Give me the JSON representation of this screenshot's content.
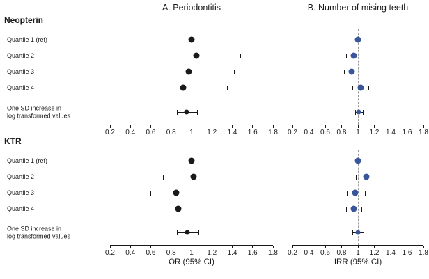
{
  "chart_data": {
    "type": "forest",
    "axis": {
      "min": 0.2,
      "max": 1.8,
      "ref_line": 1,
      "ticks": [
        0.2,
        0.4,
        0.6,
        0.8,
        1,
        1.2,
        1.4,
        1.6,
        1.8
      ],
      "tick_labels": [
        "0.2",
        "0.4",
        "0.6",
        "0.8",
        "1",
        "1.2",
        "1.4",
        "1.6",
        "1.8"
      ]
    },
    "panels": [
      {
        "key": "A",
        "title": "A. Periodontitis",
        "xlabel": "OR (95% CI)",
        "point_color": "#1a1a1a"
      },
      {
        "key": "B",
        "title": "B. Number of mising teeth",
        "xlabel": "IRR (95% CI)",
        "point_color": "#3a569b"
      }
    ],
    "sections": [
      {
        "heading": "Neopterin",
        "rows": [
          {
            "label": "Quartile 1 (ref)",
            "A": {
              "est": 1.0
            },
            "B": {
              "est": 1.0
            }
          },
          {
            "label": "Quartile 2",
            "A": {
              "est": 1.05,
              "lo": 0.78,
              "hi": 1.48
            },
            "B": {
              "est": 0.95,
              "lo": 0.86,
              "hi": 1.04
            }
          },
          {
            "label": "Quartile 3",
            "A": {
              "est": 0.97,
              "lo": 0.68,
              "hi": 1.42
            },
            "B": {
              "est": 0.92,
              "lo": 0.83,
              "hi": 1.01
            }
          },
          {
            "label": "Quartile 4",
            "A": {
              "est": 0.92,
              "lo": 0.62,
              "hi": 1.35
            },
            "B": {
              "est": 1.03,
              "lo": 0.94,
              "hi": 1.13
            }
          },
          {
            "label": "One SD increase in\nlog transformed values",
            "A": {
              "est": 0.95,
              "lo": 0.86,
              "hi": 1.06
            },
            "B": {
              "est": 1.01,
              "lo": 0.97,
              "hi": 1.06
            }
          }
        ]
      },
      {
        "heading": "KTR",
        "rows": [
          {
            "label": "Quartile 1 (ref)",
            "A": {
              "est": 1.0
            },
            "B": {
              "est": 1.0
            }
          },
          {
            "label": "Quartile 2",
            "A": {
              "est": 1.02,
              "lo": 0.72,
              "hi": 1.45
            },
            "B": {
              "est": 1.1,
              "lo": 0.98,
              "hi": 1.27
            }
          },
          {
            "label": "Quartile 3",
            "A": {
              "est": 0.85,
              "lo": 0.6,
              "hi": 1.18
            },
            "B": {
              "est": 0.97,
              "lo": 0.87,
              "hi": 1.09
            }
          },
          {
            "label": "Quartile 4",
            "A": {
              "est": 0.87,
              "lo": 0.62,
              "hi": 1.22
            },
            "B": {
              "est": 0.95,
              "lo": 0.86,
              "hi": 1.05
            }
          },
          {
            "label": "One SD increase in\nlog transformed values",
            "A": {
              "est": 0.96,
              "lo": 0.86,
              "hi": 1.07
            },
            "B": {
              "est": 1.0,
              "lo": 0.94,
              "hi": 1.07
            }
          }
        ]
      }
    ]
  }
}
